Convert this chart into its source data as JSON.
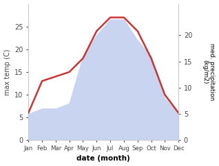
{
  "months": [
    "Jan",
    "Feb",
    "Mar",
    "Apr",
    "May",
    "Jun",
    "Jul",
    "Aug",
    "Sep",
    "Oct",
    "Nov",
    "Dec"
  ],
  "max_temp": [
    6,
    13,
    14,
    15,
    18,
    24,
    27,
    27,
    24,
    18,
    10,
    6
  ],
  "precipitation": [
    5,
    6,
    6,
    7,
    16,
    20,
    23,
    23,
    19,
    16,
    8,
    5
  ],
  "temp_color": "#cc3333",
  "precip_fill_color": "#c8d4f0",
  "xlabel": "date (month)",
  "ylabel_left": "max temp (C)",
  "ylabel_right": "med. precipitation\n(kg/m2)",
  "ylim_left": [
    0,
    30
  ],
  "ylim_right": [
    0,
    26
  ],
  "yticks_left": [
    0,
    5,
    10,
    15,
    20,
    25
  ],
  "yticks_right": [
    0,
    5,
    10,
    15,
    20
  ],
  "background_color": "#ffffff",
  "temp_linewidth": 1.8
}
